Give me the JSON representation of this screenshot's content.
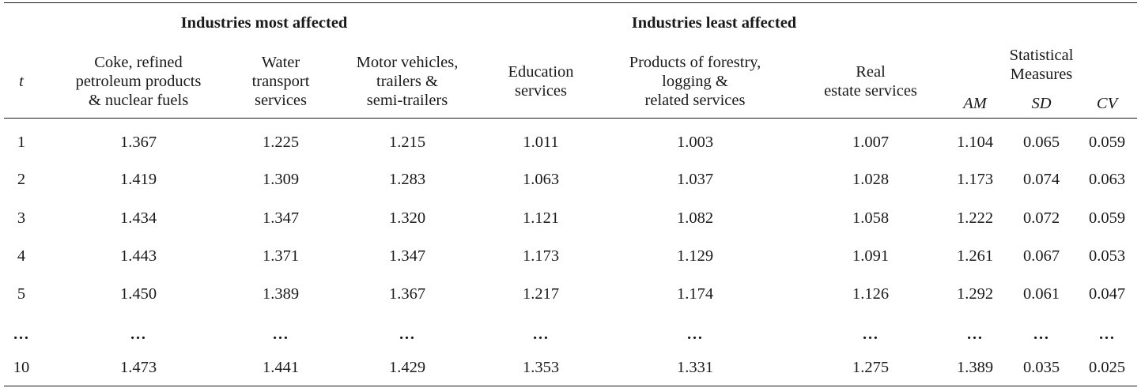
{
  "table": {
    "group_headers": {
      "most": "Industries most affected",
      "least": "Industries least affected"
    },
    "columns": {
      "t": "t",
      "coke": [
        "Coke, refined",
        "petroleum products",
        "& nuclear fuels"
      ],
      "water": [
        "Water",
        "transport",
        "services"
      ],
      "motor": [
        "Motor vehicles,",
        "trailers &",
        "semi-trailers"
      ],
      "education": [
        "Education",
        "services"
      ],
      "forestry": [
        "Products of forestry,",
        "logging &",
        "related services"
      ],
      "realestate": [
        "Real",
        "estate services"
      ],
      "stat_measures": [
        "Statistical",
        "Measures"
      ],
      "am": "AM",
      "sd": "SD",
      "cv": "CV"
    },
    "rows": [
      [
        "1",
        "1.367",
        "1.225",
        "1.215",
        "1.011",
        "1.003",
        "1.007",
        "1.104",
        "0.065",
        "0.059"
      ],
      [
        "2",
        "1.419",
        "1.309",
        "1.283",
        "1.063",
        "1.037",
        "1.028",
        "1.173",
        "0.074",
        "0.063"
      ],
      [
        "3",
        "1.434",
        "1.347",
        "1.320",
        "1.121",
        "1.082",
        "1.058",
        "1.222",
        "0.072",
        "0.059"
      ],
      [
        "4",
        "1.443",
        "1.371",
        "1.347",
        "1.173",
        "1.129",
        "1.091",
        "1.261",
        "0.067",
        "0.053"
      ],
      [
        "5",
        "1.450",
        "1.389",
        "1.367",
        "1.217",
        "1.174",
        "1.126",
        "1.292",
        "0.061",
        "0.047"
      ],
      [
        "…",
        "…",
        "…",
        "…",
        "…",
        "…",
        "…",
        "…",
        "…",
        "…"
      ],
      [
        "10",
        "1.473",
        "1.441",
        "1.429",
        "1.353",
        "1.331",
        "1.275",
        "1.389",
        "0.035",
        "0.025"
      ]
    ]
  }
}
